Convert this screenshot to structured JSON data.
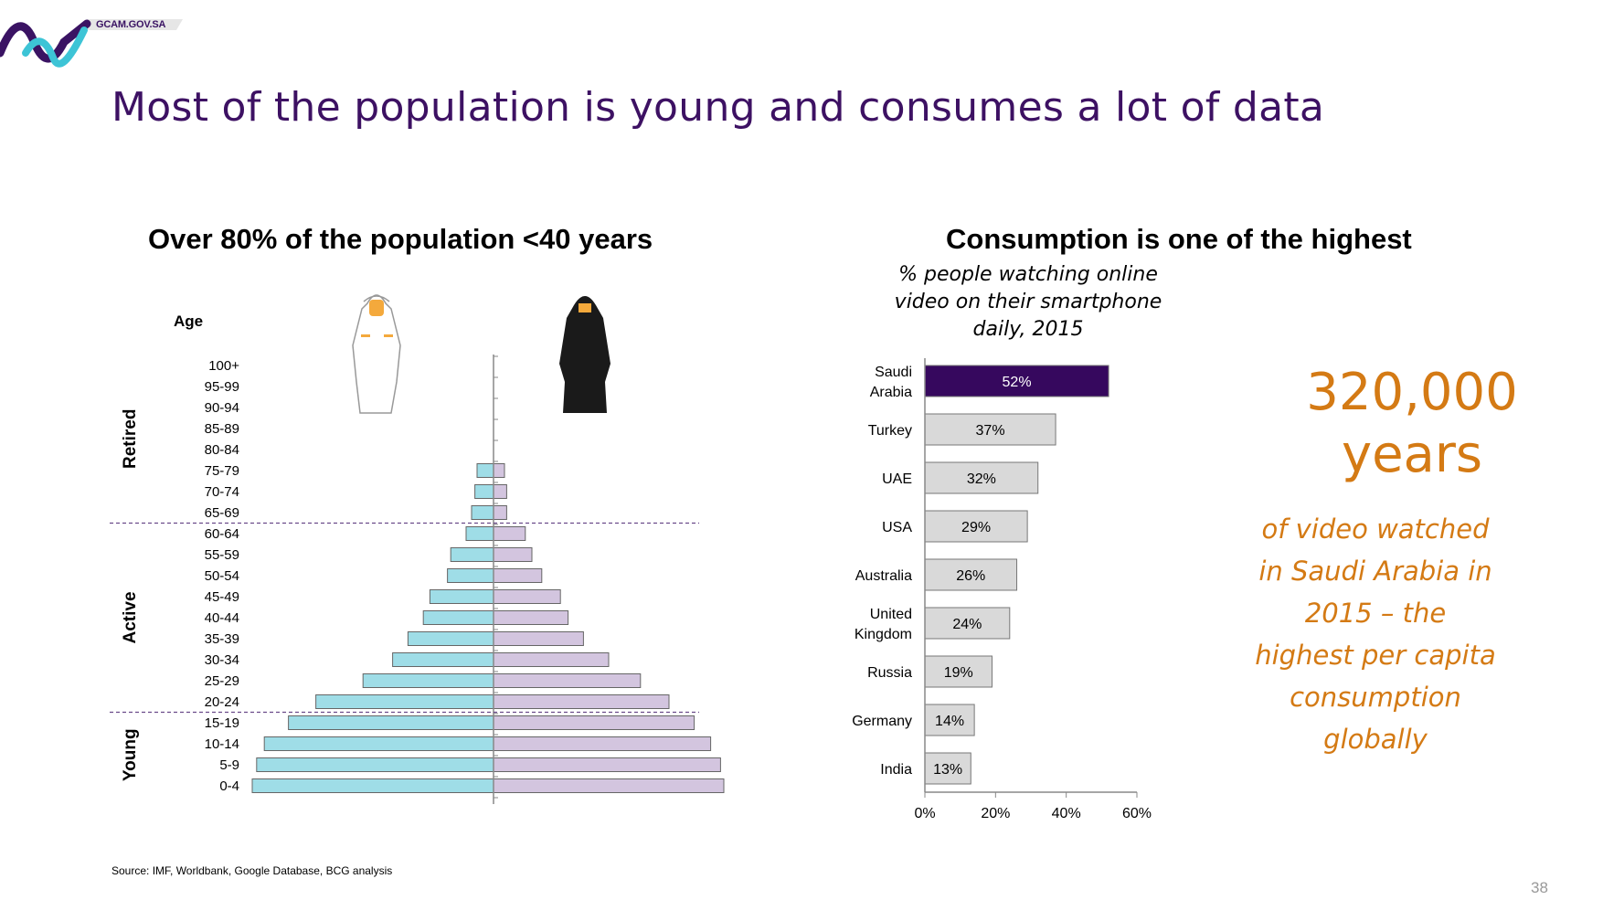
{
  "header": {
    "logo_text": "GCAM.GOV.SA",
    "title": "Most of the population is young and consumes a lot of data"
  },
  "left_panel": {
    "title": "Over 80% of the population <40 years",
    "groups": [
      "Retired",
      "Active",
      "Young"
    ],
    "male_icon": "saudi-man-icon",
    "female_icon": "saudi-woman-icon"
  },
  "right_panel": {
    "title": "Consumption is one of the highest",
    "subtitle": "% people watching online video on their smartphone daily, 2015",
    "big_number": "320,000 years",
    "callout": "of video watched in Saudi Arabia in 2015 – the highest per capita consumption globally"
  },
  "footer": {
    "source": "Source: IMF, Worldbank, Google Database, BCG analysis",
    "page_number": "38"
  },
  "colors": {
    "title": "#3d1163",
    "accent_orange": "#d47a14",
    "male_bar": "#9fdde7",
    "female_bar": "#d3c5df",
    "highlight_bar": "#36085e",
    "gray_bar": "#d9d9d9"
  },
  "chart_data": [
    {
      "type": "bar",
      "orientation": "horizontal",
      "subtype": "population-pyramid",
      "ylabel": "Age",
      "categories": [
        "100+",
        "95-99",
        "90-94",
        "85-89",
        "80-84",
        "75-79",
        "70-74",
        "65-69",
        "60-64",
        "55-59",
        "50-54",
        "45-49",
        "40-44",
        "35-39",
        "30-34",
        "25-29",
        "20-24",
        "15-19",
        "10-14",
        "5-9",
        "0-4"
      ],
      "series": [
        {
          "values": [
            0,
            0,
            0,
            0,
            0,
            1.5,
            1.7,
            2.0,
            2.5,
            3.9,
            4.2,
            5.8,
            6.4,
            7.8,
            9.2,
            11.9,
            16.2,
            18.7,
            20.9,
            21.6,
            22.0
          ]
        },
        {
          "values": [
            0,
            0,
            0,
            0,
            0,
            1.0,
            1.2,
            1.2,
            2.9,
            3.5,
            4.4,
            6.1,
            6.8,
            8.2,
            10.5,
            13.4,
            16.0,
            18.3,
            19.8,
            20.7,
            21.0
          ]
        }
      ],
      "group_dividers": [
        "65-69/60-64",
        "20-24/15-19"
      ]
    },
    {
      "type": "bar",
      "orientation": "horizontal",
      "categories": [
        "Saudi Arabia",
        "Turkey",
        "UAE",
        "USA",
        "Australia",
        "United Kingdom",
        "Russia",
        "Germany",
        "India"
      ],
      "values": [
        52,
        37,
        32,
        29,
        26,
        24,
        19,
        14,
        13
      ],
      "data_labels": [
        "52%",
        "37%",
        "32%",
        "29%",
        "26%",
        "24%",
        "19%",
        "14%",
        "13%"
      ],
      "x_ticks": [
        "0%",
        "20%",
        "40%",
        "60%"
      ],
      "xlim": [
        0,
        60
      ],
      "highlight": "Saudi Arabia"
    }
  ]
}
